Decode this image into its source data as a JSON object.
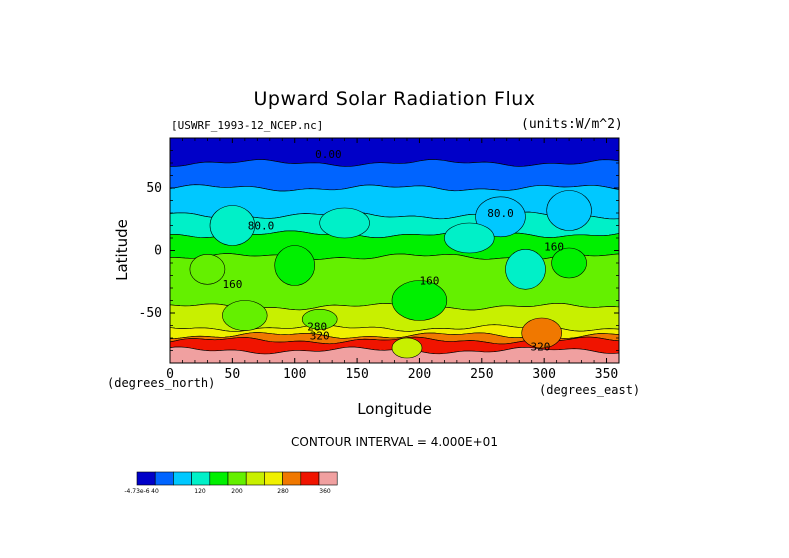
{
  "chart_data": {
    "type": "heatmap",
    "title": "Upward Solar Radiation Flux",
    "dataset_label": "[USWRF_1993-12_NCEP.nc]",
    "units": "(units:W/m^2)",
    "xlabel": "Longitude",
    "ylabel": "Latitude",
    "x_unit": "(degrees_east)",
    "y_unit": "(degrees_north)",
    "xlim": [
      0,
      360
    ],
    "ylim": [
      -90,
      90
    ],
    "x_ticks": [
      0,
      50,
      100,
      150,
      200,
      250,
      300,
      350
    ],
    "y_ticks": [
      50,
      0,
      -50
    ],
    "contour_interval": "CONTOUR INTERVAL = 4.000E+01",
    "contour_labels": [
      {
        "text": "0.00",
        "lon": 127,
        "lat": 74
      },
      {
        "text": "80.0",
        "lon": 265,
        "lat": 27
      },
      {
        "text": "80.0",
        "lon": 73,
        "lat": 17
      },
      {
        "text": "160",
        "lon": 308,
        "lat": 0
      },
      {
        "text": "160",
        "lon": 50,
        "lat": -30
      },
      {
        "text": "160",
        "lon": 208,
        "lat": -27
      },
      {
        "text": "280",
        "lon": 118,
        "lat": -64
      },
      {
        "text": "320",
        "lon": 120,
        "lat": -71
      },
      {
        "text": "320",
        "lon": 297,
        "lat": -80
      }
    ],
    "latitude_bands": [
      {
        "lat_max": 90,
        "lat_min": 70,
        "level": 0
      },
      {
        "lat_max": 70,
        "lat_min": 50,
        "level": 1
      },
      {
        "lat_max": 50,
        "lat_min": 28,
        "level": 2
      },
      {
        "lat_max": 28,
        "lat_min": 13,
        "level": 3
      },
      {
        "lat_max": 13,
        "lat_min": -5,
        "level": 4
      },
      {
        "lat_max": -5,
        "lat_min": -45,
        "level": 5
      },
      {
        "lat_max": -45,
        "lat_min": -62,
        "level": 6
      },
      {
        "lat_max": -62,
        "lat_min": -68,
        "level": 7
      },
      {
        "lat_max": -68,
        "lat_min": -72,
        "level": 8
      },
      {
        "lat_max": -72,
        "lat_min": -80,
        "level": 9
      },
      {
        "lat_max": -80,
        "lat_min": -90,
        "level": 10
      }
    ],
    "colorbar": {
      "colors": [
        "#0000c8",
        "#0064ff",
        "#00c8ff",
        "#00f0c8",
        "#00f000",
        "#64f000",
        "#c8f000",
        "#f0f000",
        "#f07800",
        "#f01400",
        "#f0a0a0"
      ],
      "labels": [
        "-4.73e-6",
        "40",
        "120",
        "200",
        "280",
        "360"
      ]
    }
  }
}
